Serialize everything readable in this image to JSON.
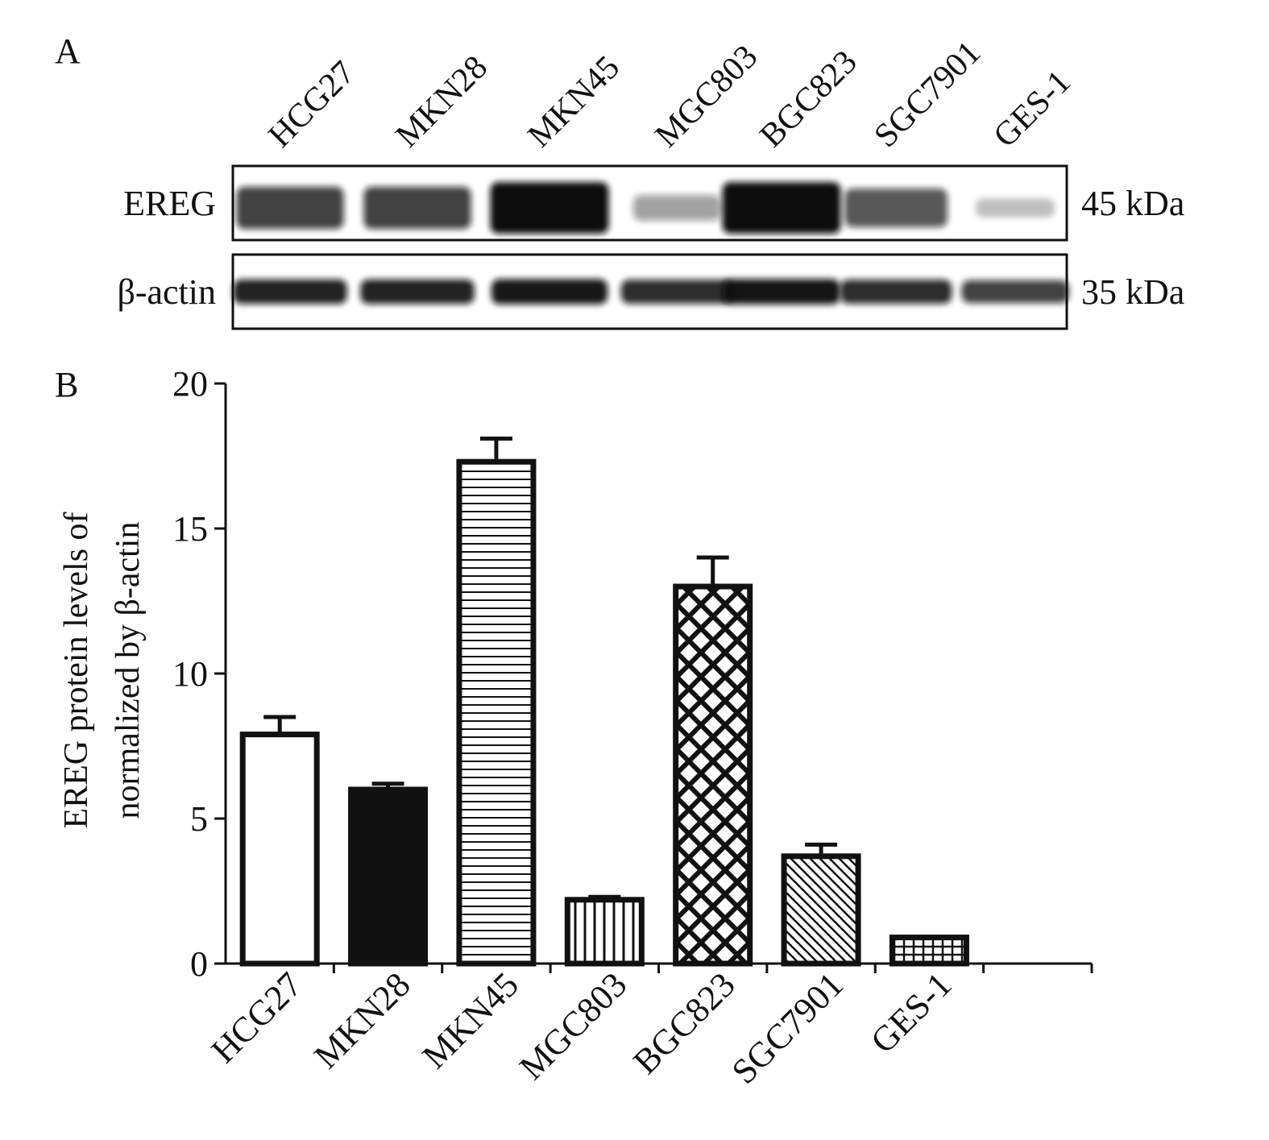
{
  "panel_a": {
    "label": "A",
    "lanes": [
      "HCG27",
      "MKN28",
      "MKN45",
      "MGC803",
      "BGC823",
      "SGC7901",
      "GES-1"
    ],
    "blots": [
      {
        "name": "EREG",
        "size": "45 kDa",
        "intensity": [
          0.75,
          0.75,
          1.0,
          0.3,
          1.0,
          0.65,
          0.12
        ]
      },
      {
        "name": "β-actin",
        "size": "35 kDa",
        "intensity": [
          0.9,
          0.9,
          0.95,
          0.85,
          0.97,
          0.85,
          0.75
        ]
      }
    ]
  },
  "chart_data": {
    "type": "bar",
    "panel_label": "B",
    "categories": [
      "HCG27",
      "MKN28",
      "MKN45",
      "MGC803",
      "BGC823",
      "SGC7901",
      "GES-1"
    ],
    "values": [
      7.9,
      6.0,
      17.3,
      2.2,
      13.0,
      3.7,
      0.9
    ],
    "errors": [
      0.6,
      0.2,
      0.8,
      0.1,
      1.0,
      0.4,
      0.0
    ],
    "patterns": [
      "empty",
      "solid",
      "horizontal-lines",
      "vertical-lines",
      "crosshatch-diagonal",
      "diagonal-lines",
      "grid"
    ],
    "ylabel_line1": "EREG protein levels of",
    "ylabel_line2": "normalized by β-actin",
    "xlabel": "",
    "yticks": [
      0,
      5,
      10,
      15,
      20
    ],
    "ylim": [
      0,
      20
    ],
    "grid": false
  }
}
